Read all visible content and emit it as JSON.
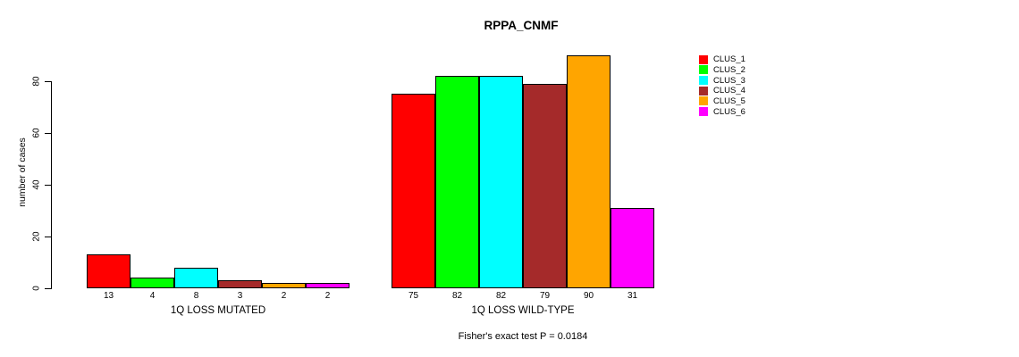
{
  "chart_data": {
    "type": "bar",
    "title": "RPPA_CNMF",
    "ylabel": "number of cases",
    "xlabel": "",
    "ylim": [
      0,
      90
    ],
    "yticks": [
      0,
      20,
      40,
      60,
      80
    ],
    "grid": false,
    "legend_position": "right-outside",
    "clusters": [
      {
        "name": "CLUS_1",
        "color": "#FF0000"
      },
      {
        "name": "CLUS_2",
        "color": "#00FF00"
      },
      {
        "name": "CLUS_3",
        "color": "#00FFFF"
      },
      {
        "name": "CLUS_4",
        "color": "#A52A2A"
      },
      {
        "name": "CLUS_5",
        "color": "#FFA500"
      },
      {
        "name": "CLUS_6",
        "color": "#FF00FF"
      }
    ],
    "groups": [
      {
        "label": "1Q LOSS MUTATED",
        "values": [
          13,
          4,
          8,
          3,
          2,
          2
        ]
      },
      {
        "label": "1Q LOSS WILD-TYPE",
        "values": [
          75,
          82,
          82,
          79,
          90,
          31
        ]
      }
    ],
    "note": "Fisher's exact test P = 0.0184"
  }
}
